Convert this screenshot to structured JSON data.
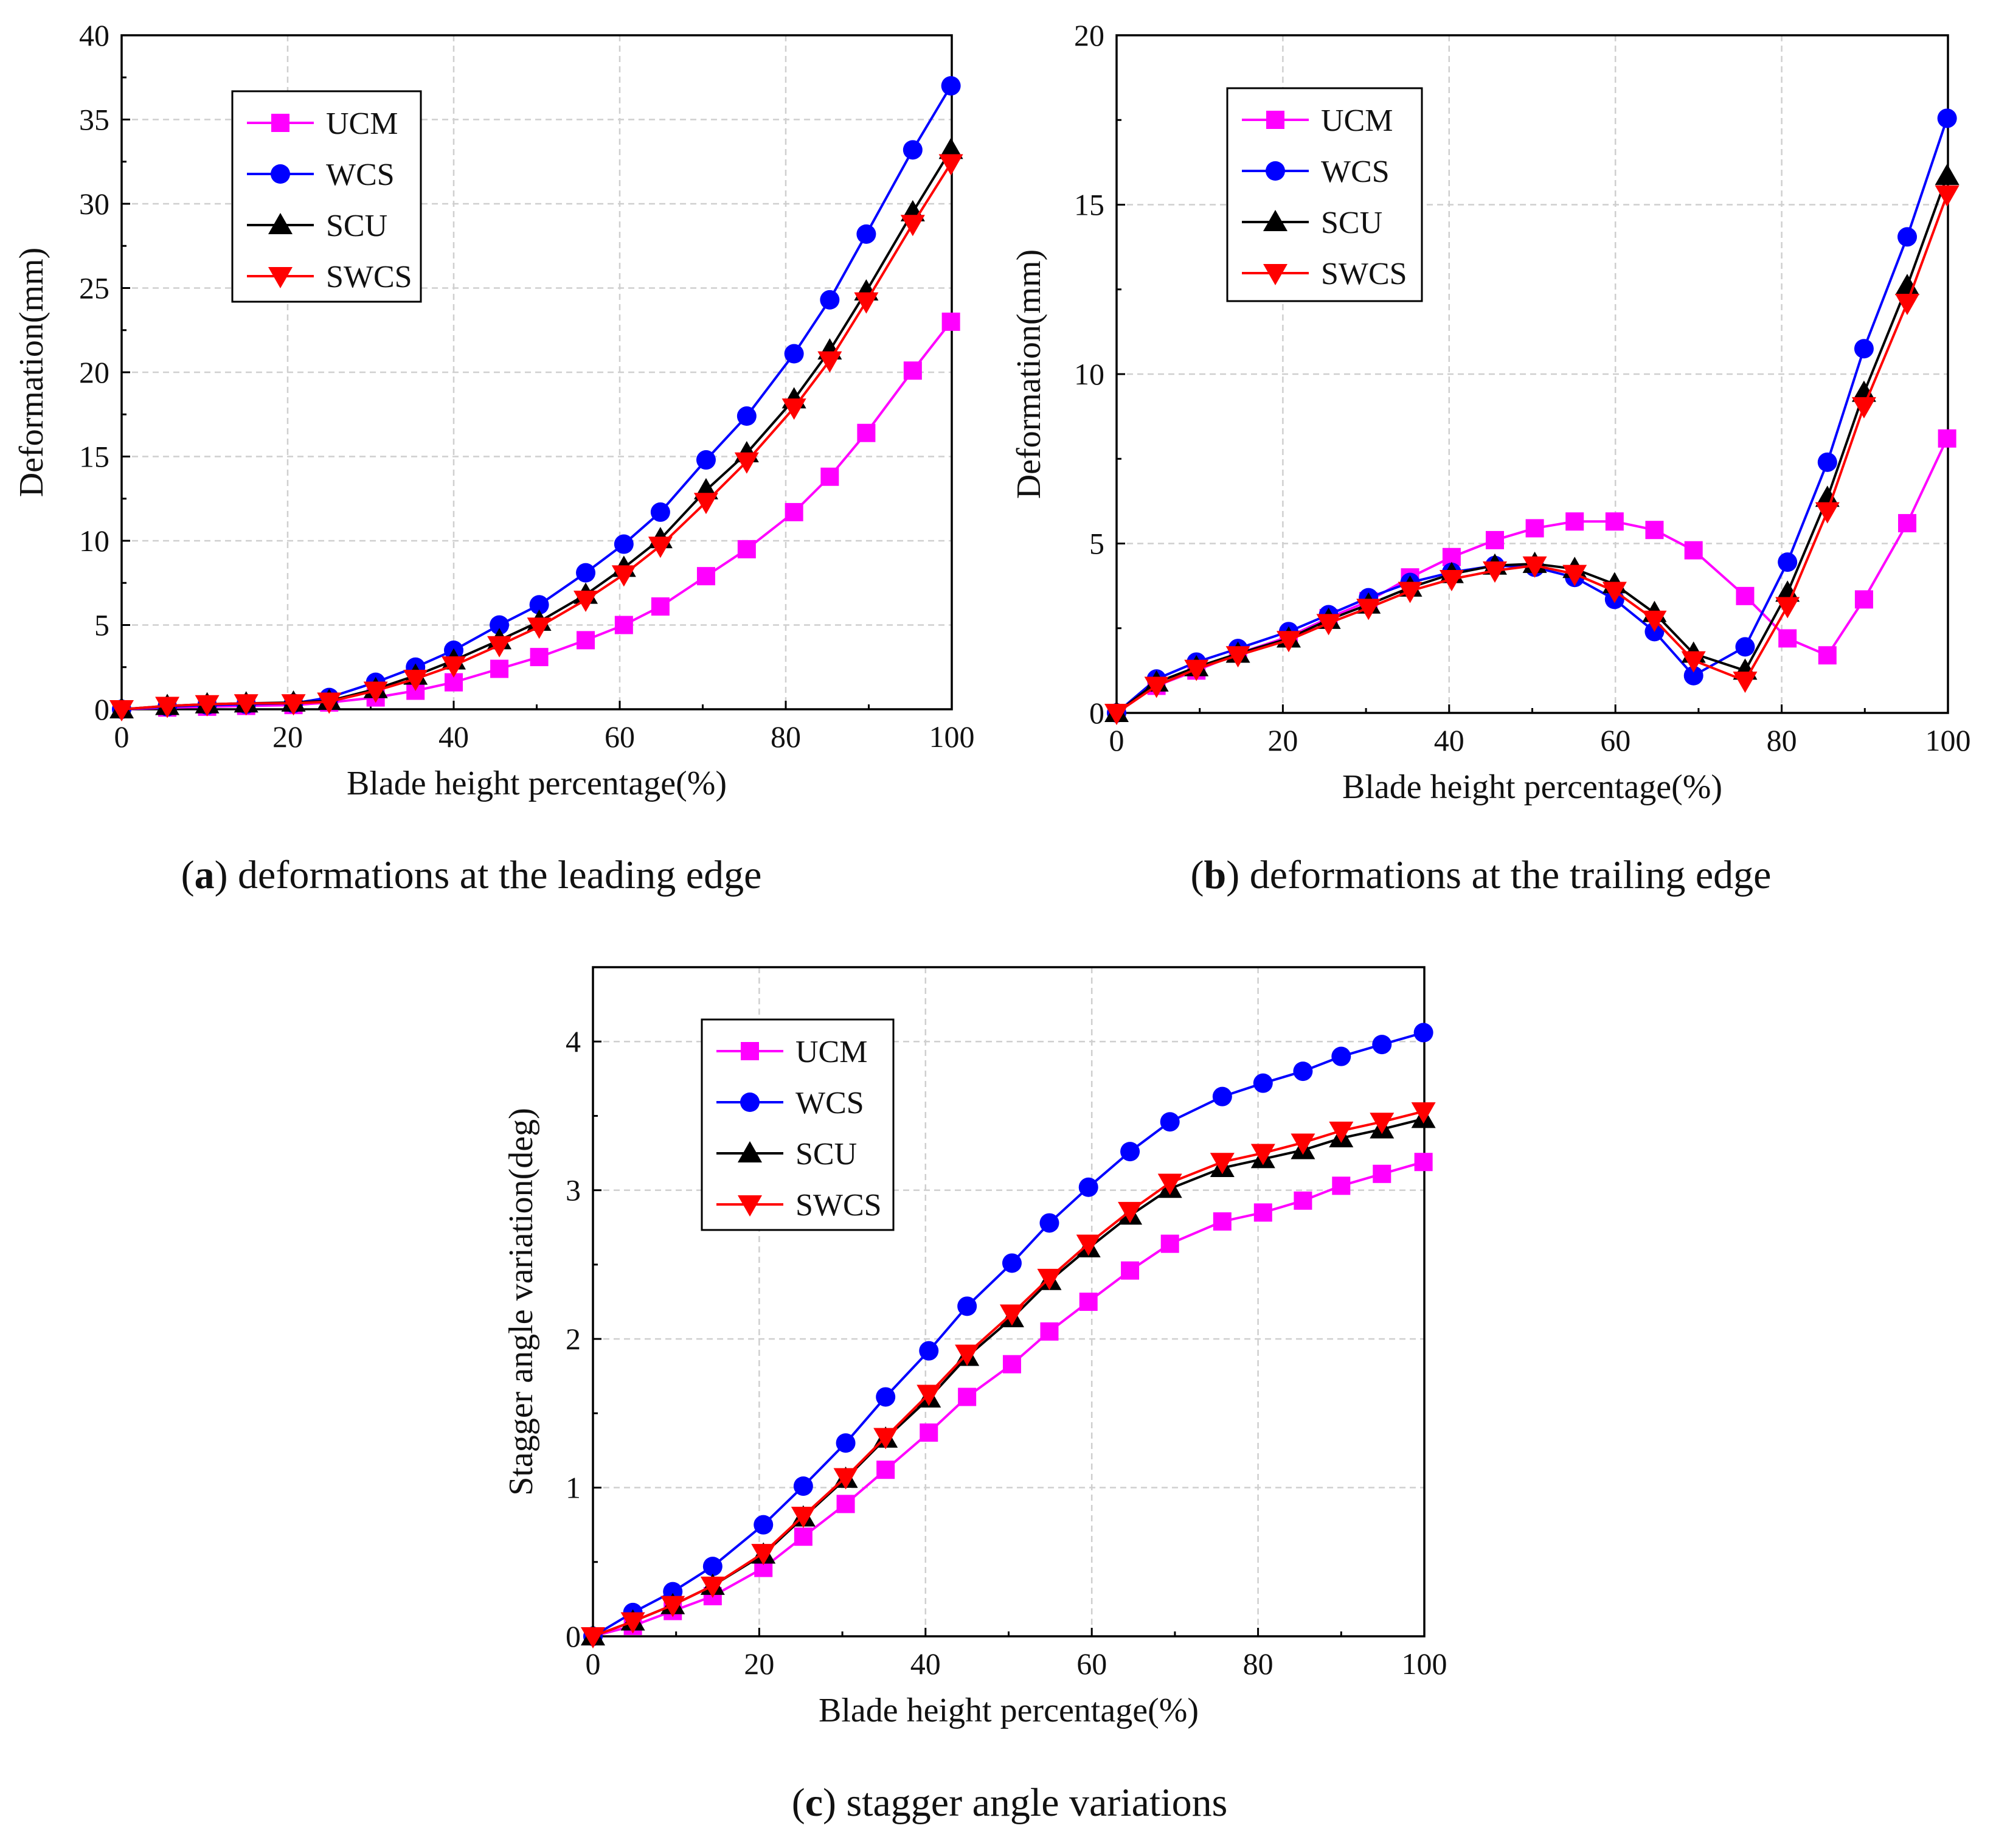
{
  "colors": {
    "UCM": "#ff00ff",
    "WCS": "#0000ff",
    "SCU": "#000000",
    "SWCS": "#ff0000"
  },
  "chart_data": [
    {
      "type": "line",
      "caption": {
        "letter": "a",
        "text": "deformations at the leading edge"
      },
      "xlabel": "Blade height percentage(%)",
      "ylabel": "Deformation(mm)",
      "xlim": [
        0,
        100
      ],
      "ylim": [
        0,
        40
      ],
      "xticks": [
        0,
        20,
        40,
        60,
        80,
        100
      ],
      "yticks": [
        0,
        5,
        10,
        15,
        20,
        25,
        30,
        35,
        40
      ],
      "grid": true,
      "legend_position": "top-left",
      "series": [
        {
          "name": "UCM",
          "marker": "square",
          "x": [
            0,
            5.5,
            10.3,
            15,
            20.7,
            25,
            30.6,
            35.4,
            40,
            45.5,
            50.3,
            55.9,
            60.5,
            64.9,
            70.4,
            75.3,
            81,
            85.3,
            89.7,
            95.3,
            99.9
          ],
          "y": [
            0,
            0.1,
            0.15,
            0.2,
            0.25,
            0.4,
            0.7,
            1.1,
            1.6,
            2.4,
            3.1,
            4.1,
            5,
            6.1,
            7.9,
            9.5,
            11.7,
            13.8,
            16.4,
            20.1,
            23
          ]
        },
        {
          "name": "WCS",
          "marker": "circle",
          "x": [
            0,
            5.5,
            10.3,
            15,
            20.7,
            25,
            30.6,
            35.4,
            40,
            45.5,
            50.3,
            55.9,
            60.5,
            64.9,
            70.4,
            75.3,
            81,
            85.3,
            89.7,
            95.3,
            99.9
          ],
          "y": [
            0,
            0.15,
            0.25,
            0.3,
            0.35,
            0.7,
            1.6,
            2.5,
            3.5,
            5,
            6.2,
            8.1,
            9.8,
            11.7,
            14.8,
            17.4,
            21.1,
            24.3,
            28.2,
            33.2,
            37
          ]
        },
        {
          "name": "SCU",
          "marker": "triangle-up",
          "x": [
            0,
            5.5,
            10.3,
            15,
            20.7,
            25,
            30.6,
            35.4,
            40,
            45.5,
            50.3,
            55.9,
            60.5,
            64.9,
            70.4,
            75.3,
            81,
            85.3,
            89.7,
            95.3,
            99.9
          ],
          "y": [
            0,
            0.2,
            0.3,
            0.35,
            0.4,
            0.5,
            1.2,
            2,
            2.9,
            4.1,
            5.2,
            6.8,
            8.4,
            10.1,
            13,
            15.2,
            18.4,
            21.3,
            24.8,
            29.5,
            33.2
          ]
        },
        {
          "name": "SWCS",
          "marker": "triangle-down",
          "x": [
            0,
            5.5,
            10.3,
            15,
            20.7,
            25,
            30.6,
            35.4,
            40,
            45.5,
            50.3,
            55.9,
            60.5,
            64.9,
            70.4,
            75.3,
            81,
            85.3,
            89.7,
            95.3,
            99.9
          ],
          "y": [
            0,
            0.2,
            0.3,
            0.35,
            0.35,
            0.45,
            1.1,
            1.8,
            2.6,
            3.8,
            4.9,
            6.5,
            8,
            9.7,
            12.3,
            14.7,
            17.9,
            20.7,
            24.2,
            28.8,
            32.4
          ]
        }
      ]
    },
    {
      "type": "line",
      "caption": {
        "letter": "b",
        "text": "deformations at the trailing edge"
      },
      "xlabel": "Blade height percentage(%)",
      "ylabel": "Deformation(mm)",
      "xlim": [
        0,
        100
      ],
      "ylim": [
        0,
        20
      ],
      "xticks": [
        0,
        20,
        40,
        60,
        80,
        100
      ],
      "yticks": [
        0,
        5,
        10,
        15,
        20
      ],
      "grid": true,
      "legend_position": "top-left",
      "series": [
        {
          "name": "UCM",
          "marker": "square",
          "x": [
            0,
            4.8,
            9.6,
            14.6,
            20.7,
            25.5,
            30.3,
            35.3,
            40.3,
            45.5,
            50.3,
            55.1,
            59.9,
            64.7,
            69.4,
            75.6,
            80.7,
            85.5,
            89.9,
            95.1,
            99.9
          ],
          "y": [
            0,
            0.8,
            1.25,
            1.75,
            2.25,
            2.8,
            3.3,
            4,
            4.6,
            5.1,
            5.45,
            5.65,
            5.65,
            5.4,
            4.8,
            3.45,
            2.2,
            1.7,
            3.35,
            5.6,
            8.1
          ]
        },
        {
          "name": "WCS",
          "marker": "circle",
          "x": [
            0,
            4.8,
            9.6,
            14.6,
            20.7,
            25.5,
            30.3,
            35.3,
            40.3,
            45.5,
            50.3,
            55.1,
            59.9,
            64.7,
            69.4,
            75.6,
            80.7,
            85.5,
            89.9,
            95.1,
            99.9
          ],
          "y": [
            0,
            1,
            1.5,
            1.9,
            2.4,
            2.9,
            3.4,
            3.85,
            4.15,
            4.35,
            4.3,
            4,
            3.35,
            2.4,
            1.1,
            1.95,
            4.45,
            7.4,
            10.75,
            14.05,
            17.55
          ]
        },
        {
          "name": "SCU",
          "marker": "triangle-up",
          "x": [
            0,
            4.8,
            9.6,
            14.6,
            20.7,
            25.5,
            30.3,
            35.3,
            40.3,
            45.5,
            50.3,
            55.1,
            59.9,
            64.7,
            69.4,
            75.6,
            80.7,
            85.5,
            89.9,
            95.1,
            99.9
          ],
          "y": [
            0,
            0.9,
            1.35,
            1.75,
            2.2,
            2.75,
            3.2,
            3.7,
            4.1,
            4.35,
            4.4,
            4.25,
            3.8,
            2.95,
            1.75,
            1.25,
            3.55,
            6.35,
            9.45,
            12.6,
            15.85
          ]
        },
        {
          "name": "SWCS",
          "marker": "triangle-down",
          "x": [
            0,
            4.8,
            9.6,
            14.6,
            20.7,
            25.5,
            30.3,
            35.3,
            40.3,
            45.5,
            50.3,
            55.1,
            59.9,
            64.7,
            69.4,
            75.6,
            80.7,
            85.5,
            89.9,
            95.1,
            99.9
          ],
          "y": [
            0,
            0.8,
            1.3,
            1.7,
            2.15,
            2.65,
            3.1,
            3.6,
            3.95,
            4.2,
            4.35,
            4.1,
            3.6,
            2.75,
            1.55,
            0.95,
            3.15,
            5.95,
            9.05,
            12.1,
            15.3
          ]
        }
      ]
    },
    {
      "type": "line",
      "caption": {
        "letter": "c",
        "text": "stagger angle variations"
      },
      "xlabel": "Blade height percentage(%)",
      "ylabel": "Stagger angle variation(deg)",
      "xlim": [
        0,
        100
      ],
      "ylim": [
        0,
        4.5
      ],
      "xticks": [
        0,
        20,
        40,
        60,
        80,
        100
      ],
      "yticks": [
        0,
        1,
        2,
        3,
        4
      ],
      "grid": true,
      "legend_position": "top-left",
      "series": [
        {
          "name": "UCM",
          "marker": "square",
          "x": [
            0,
            4.8,
            9.6,
            14.4,
            20.5,
            25.3,
            30.4,
            35.2,
            40.4,
            45,
            50.4,
            54.9,
            59.6,
            64.6,
            69.4,
            75.7,
            80.6,
            85.4,
            90,
            94.9,
            99.9
          ],
          "y": [
            0,
            0.07,
            0.17,
            0.27,
            0.46,
            0.67,
            0.89,
            1.12,
            1.37,
            1.61,
            1.83,
            2.05,
            2.25,
            2.46,
            2.64,
            2.79,
            2.85,
            2.93,
            3.03,
            3.11,
            3.19
          ]
        },
        {
          "name": "WCS",
          "marker": "circle",
          "x": [
            0,
            4.8,
            9.6,
            14.4,
            20.5,
            25.3,
            30.4,
            35.2,
            40.4,
            45,
            50.4,
            54.9,
            59.6,
            64.6,
            69.4,
            75.7,
            80.6,
            85.4,
            90,
            94.9,
            99.9
          ],
          "y": [
            0,
            0.16,
            0.3,
            0.47,
            0.75,
            1.01,
            1.3,
            1.61,
            1.92,
            2.22,
            2.51,
            2.78,
            3.02,
            3.26,
            3.46,
            3.63,
            3.72,
            3.8,
            3.9,
            3.98,
            4.06
          ]
        },
        {
          "name": "SCU",
          "marker": "triangle-up",
          "x": [
            0,
            4.8,
            9.6,
            14.4,
            20.5,
            25.3,
            30.4,
            35.2,
            40.4,
            45,
            50.4,
            54.9,
            59.6,
            64.6,
            69.4,
            75.7,
            80.6,
            85.4,
            90,
            94.9,
            99.9
          ],
          "y": [
            0,
            0.1,
            0.21,
            0.34,
            0.55,
            0.8,
            1.06,
            1.33,
            1.6,
            1.88,
            2.14,
            2.39,
            2.61,
            2.83,
            3.01,
            3.15,
            3.21,
            3.27,
            3.35,
            3.41,
            3.48
          ]
        },
        {
          "name": "SWCS",
          "marker": "triangle-down",
          "x": [
            0,
            4.8,
            9.6,
            14.4,
            20.5,
            25.3,
            30.4,
            35.2,
            40.4,
            45,
            50.4,
            54.9,
            59.6,
            64.6,
            69.4,
            75.7,
            80.6,
            85.4,
            90,
            94.9,
            99.9
          ],
          "y": [
            0,
            0.1,
            0.21,
            0.34,
            0.56,
            0.81,
            1.07,
            1.34,
            1.63,
            1.9,
            2.17,
            2.41,
            2.64,
            2.86,
            3.05,
            3.19,
            3.25,
            3.32,
            3.4,
            3.46,
            3.53
          ]
        }
      ]
    }
  ]
}
